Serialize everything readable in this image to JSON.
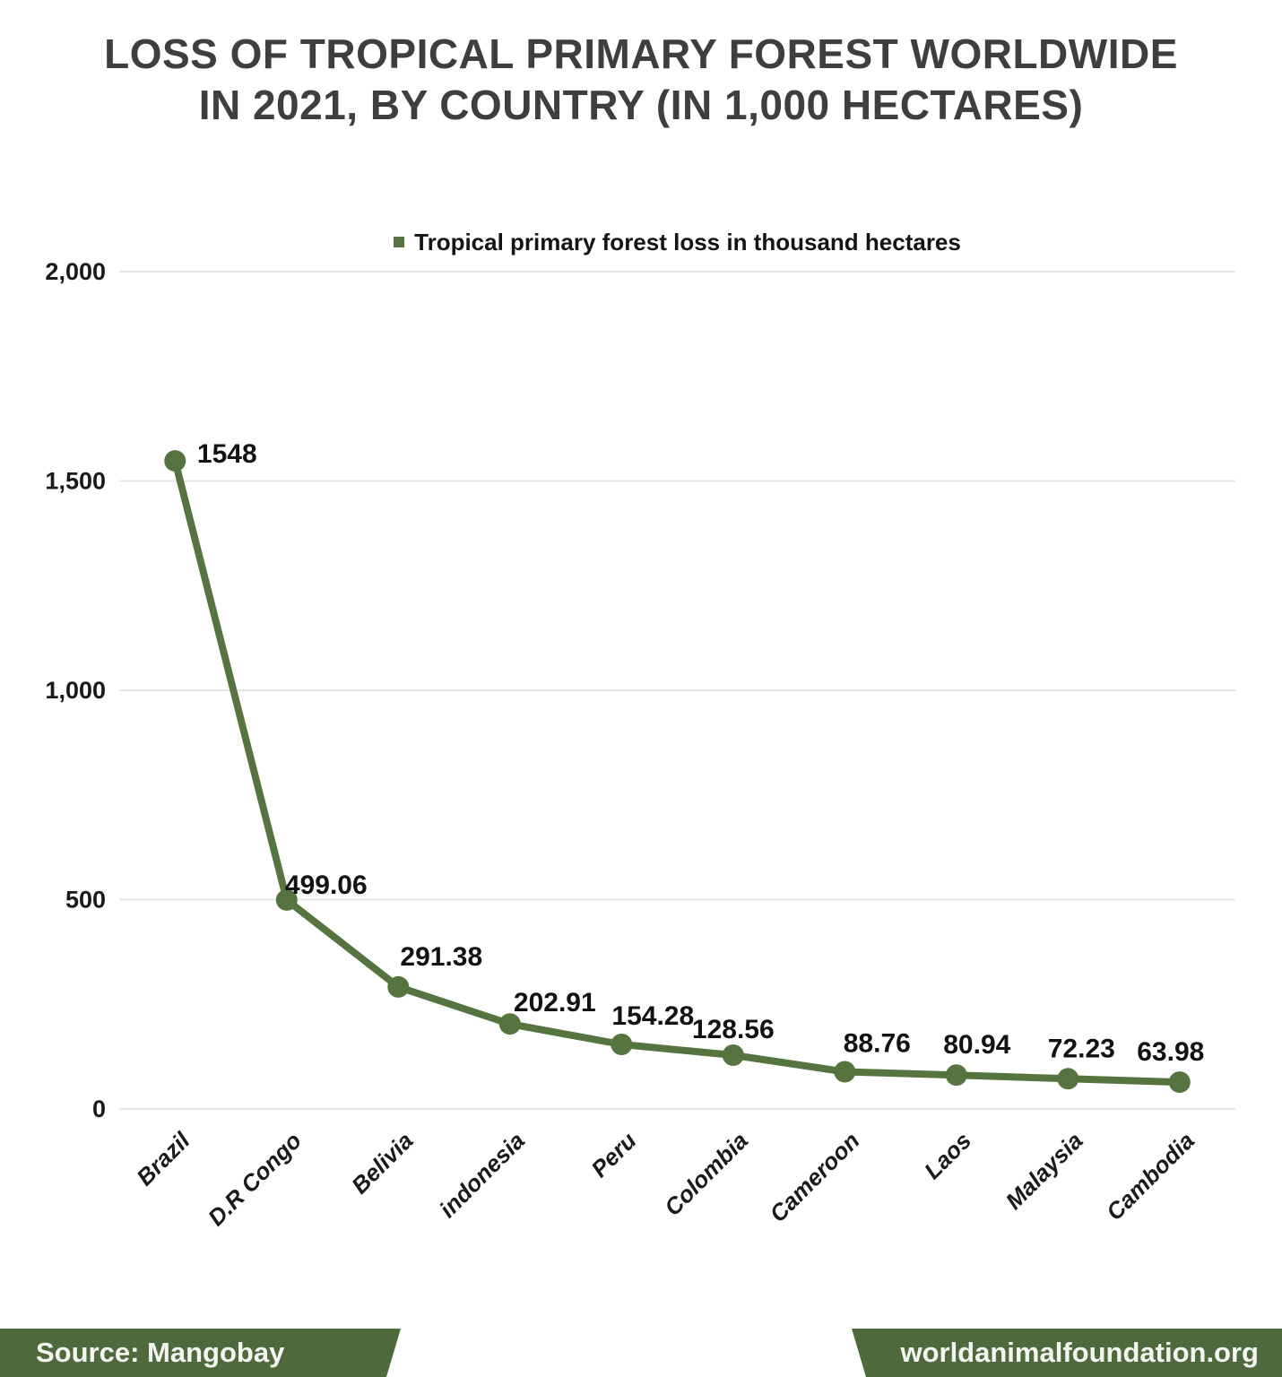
{
  "title": {
    "line1": "LOSS OF TROPICAL PRIMARY FOREST WORLDWIDE",
    "line2": "IN 2021, BY COUNTRY (IN 1,000 HECTARES)"
  },
  "legend": {
    "label": "Tropical primary forest loss in thousand hectares"
  },
  "footer": {
    "source": "Source: Mangobay",
    "website": "worldanimalfoundation.org"
  },
  "colors": {
    "line": "#567440",
    "marker": "#567440",
    "grid": "#e5e5e5",
    "axis_text": "#1a1a1a",
    "data_label_text": "#121212",
    "banner": "#4e6a3d",
    "title_text": "#3e3e40"
  },
  "chart_data": {
    "type": "line",
    "title": "LOSS OF TROPICAL PRIMARY FOREST WORLDWIDE IN 2021, BY COUNTRY (IN 1,000 HECTARES)",
    "series_name": "Tropical primary forest loss in thousand hectares",
    "categories": [
      "Brazil",
      "D.R Congo",
      "Belivia",
      "indonesia",
      "Peru",
      "Colombia",
      "Cameroon",
      "Laos",
      "Malaysia",
      "Cambodia"
    ],
    "values": [
      1548,
      499.06,
      291.38,
      202.91,
      154.28,
      128.56,
      88.76,
      80.94,
      72.23,
      63.98
    ],
    "data_labels": [
      "1548",
      "499.06",
      "291.38",
      "202.91",
      "154.28",
      "128.56",
      "88.76",
      "80.94",
      "72.23",
      "63.98"
    ],
    "xlabel": "",
    "ylabel": "",
    "ylim": [
      0,
      2000
    ],
    "y_ticks": [
      {
        "value": 2000,
        "label": "2,000"
      },
      {
        "value": 1500,
        "label": "1,500"
      },
      {
        "value": 1000,
        "label": "1,000"
      },
      {
        "value": 500,
        "label": "500"
      },
      {
        "value": 0,
        "label": "0"
      }
    ],
    "grid": true,
    "legend_position": "top-center",
    "marker": "circle"
  }
}
